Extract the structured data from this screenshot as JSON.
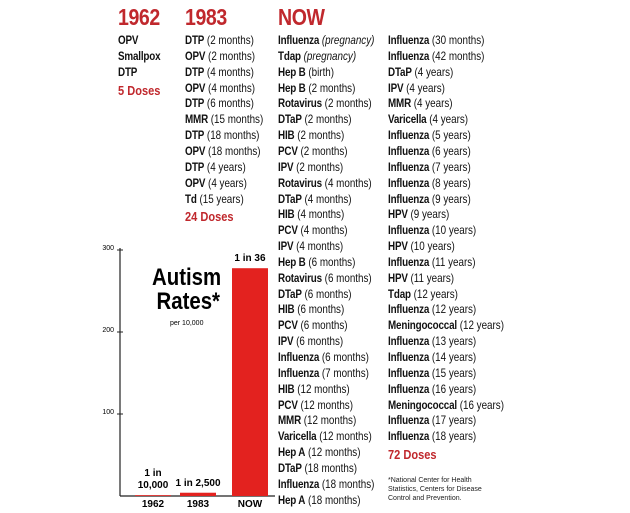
{
  "columns": [
    {
      "header": "1962",
      "items": [
        {
          "name": "OPV"
        },
        {
          "name": "Smallpox"
        },
        {
          "name": "DTP"
        }
      ],
      "total": "5 Doses"
    },
    {
      "header": "1983",
      "items": [
        {
          "name": "DTP",
          "detail": "(2 months)"
        },
        {
          "name": "OPV",
          "detail": "(2 months)"
        },
        {
          "name": "DTP",
          "detail": "(4 months)"
        },
        {
          "name": "OPV",
          "detail": "(4 months)"
        },
        {
          "name": "DTP",
          "detail": "(6 months)"
        },
        {
          "name": "MMR",
          "detail": "(15 months)"
        },
        {
          "name": "DTP",
          "detail": "(18 months)"
        },
        {
          "name": "OPV",
          "detail": "(18 months)"
        },
        {
          "name": "DTP",
          "detail": "(4 years)"
        },
        {
          "name": "OPV",
          "detail": "(4 years)"
        },
        {
          "name": "Td",
          "detail": "(15 years)"
        }
      ],
      "total": "24 Doses"
    }
  ],
  "now": {
    "header": "NOW",
    "columns": [
      [
        {
          "name": "Influenza",
          "detail": "(pregnancy)"
        },
        {
          "name": "Tdap",
          "detail": "(pregnancy)"
        },
        {
          "name": "Hep B",
          "detail": "(birth)"
        },
        {
          "name": "Hep B",
          "detail": "(2 months)"
        },
        {
          "name": "Rotavirus",
          "detail": "(2 months)"
        },
        {
          "name": "DTaP",
          "detail": "(2 months)"
        },
        {
          "name": "HIB",
          "detail": "(2 months)"
        },
        {
          "name": "PCV",
          "detail": "(2 months)"
        },
        {
          "name": "IPV",
          "detail": "(2 months)"
        },
        {
          "name": "Rotavirus",
          "detail": "(4 months)"
        },
        {
          "name": "DTaP",
          "detail": "(4 months)"
        },
        {
          "name": "HIB",
          "detail": "(4 months)"
        },
        {
          "name": "PCV",
          "detail": "(4 months)"
        },
        {
          "name": "IPV",
          "detail": "(4 months)"
        },
        {
          "name": "Hep B",
          "detail": "(6 months)"
        },
        {
          "name": "Rotavirus",
          "detail": "(6 months)"
        },
        {
          "name": "DTaP",
          "detail": "(6 months)"
        },
        {
          "name": "HIB",
          "detail": "(6 months)"
        },
        {
          "name": "PCV",
          "detail": "(6 months)"
        },
        {
          "name": "IPV",
          "detail": "(6 months)"
        },
        {
          "name": "Influenza",
          "detail": "(6 months)"
        },
        {
          "name": "Influenza",
          "detail": "(7 months)"
        },
        {
          "name": "HIB",
          "detail": "(12 months)"
        },
        {
          "name": "PCV",
          "detail": "(12 months)"
        },
        {
          "name": "MMR",
          "detail": "(12 months)"
        },
        {
          "name": "Varicella",
          "detail": "(12 months)"
        },
        {
          "name": "Hep A",
          "detail": "(12 months)"
        },
        {
          "name": "DTaP",
          "detail": "(18 months)"
        },
        {
          "name": "Influenza",
          "detail": "(18 months)"
        },
        {
          "name": "Hep A",
          "detail": "(18 months)"
        }
      ],
      [
        {
          "name": "Influenza",
          "detail": "(30 months)"
        },
        {
          "name": "Influenza",
          "detail": "(42 months)"
        },
        {
          "name": "DTaP",
          "detail": "(4 years)"
        },
        {
          "name": "IPV",
          "detail": "(4 years)"
        },
        {
          "name": "MMR",
          "detail": "(4 years)"
        },
        {
          "name": "Varicella",
          "detail": "(4 years)"
        },
        {
          "name": "Influenza",
          "detail": "(5 years)"
        },
        {
          "name": "Influenza",
          "detail": "(6 years)"
        },
        {
          "name": "Influenza",
          "detail": "(7 years)"
        },
        {
          "name": "Influenza",
          "detail": "(8 years)"
        },
        {
          "name": "Influenza",
          "detail": "(9 years)"
        },
        {
          "name": "HPV",
          "detail": "(9 years)"
        },
        {
          "name": "Influenza",
          "detail": "(10 years)"
        },
        {
          "name": "HPV",
          "detail": "(10 years)"
        },
        {
          "name": "Influenza",
          "detail": "(11 years)"
        },
        {
          "name": "HPV",
          "detail": "(11 years)"
        },
        {
          "name": "Tdap",
          "detail": "(12 years)"
        },
        {
          "name": "Influenza",
          "detail": "(12 years)"
        },
        {
          "name": "Meningococcal",
          "detail": "(12 years)"
        },
        {
          "name": "Influenza",
          "detail": "(13 years)"
        },
        {
          "name": "Influenza",
          "detail": "(14 years)"
        },
        {
          "name": "Influenza",
          "detail": "(15 years)"
        },
        {
          "name": "Influenza",
          "detail": "(16 years)"
        },
        {
          "name": "Meningococcal",
          "detail": "(16 years)"
        },
        {
          "name": "Influenza",
          "detail": "(17 years)"
        },
        {
          "name": "Influenza",
          "detail": "(18 years)"
        }
      ]
    ],
    "total": "72 Doses"
  },
  "footnote": "*National Center for Health Statistics, Centers for Disease Control and Prevention.",
  "chart_data": {
    "type": "bar",
    "title": "Autism Rates*",
    "subtitle": "per 10,000",
    "categories": [
      "1962",
      "1983",
      "NOW"
    ],
    "values": [
      1,
      4,
      277.8
    ],
    "value_labels": [
      "1 in 10,000",
      "1 in 2,500",
      "1 in 36"
    ],
    "color": "#e3221f",
    "ylim": [
      0,
      300
    ],
    "yticks": [
      100,
      200,
      300
    ]
  }
}
